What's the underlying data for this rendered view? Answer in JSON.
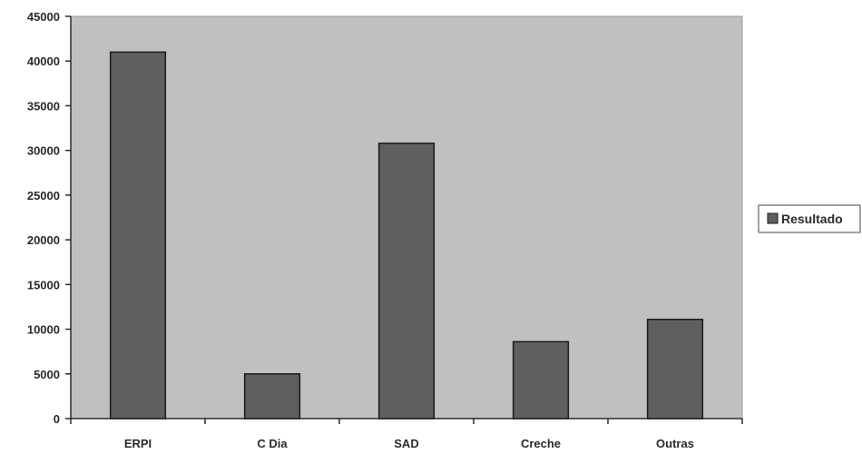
{
  "chart_data": {
    "type": "bar",
    "categories": [
      "ERPI",
      "C Dia",
      "SAD",
      "Creche",
      "Outras"
    ],
    "series": [
      {
        "name": "Resultado",
        "values": [
          41000,
          5000,
          30800,
          8600,
          11100
        ]
      }
    ],
    "ylim": [
      0,
      45000
    ],
    "yticks": [
      0,
      5000,
      10000,
      15000,
      20000,
      25000,
      30000,
      35000,
      40000,
      45000
    ],
    "grid": false,
    "legend_position": "right",
    "colors": {
      "plot_background": "#c0c0c0",
      "bar_fill": "#5f5f5f",
      "bar_stroke": "#1a1a1a",
      "axis": "#2a2a2a"
    }
  }
}
